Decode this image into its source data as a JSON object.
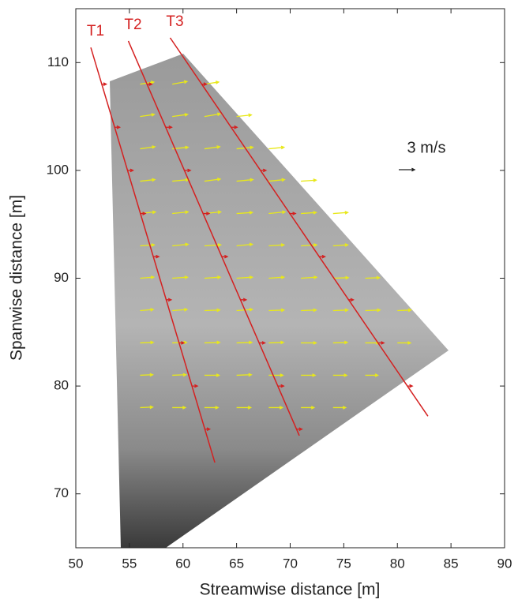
{
  "chart_data": {
    "type": "quiver",
    "xlabel": "Streamwise distance [m]",
    "ylabel": "Spanwise distance [m]",
    "xlim": [
      50,
      90
    ],
    "ylim": [
      65,
      115
    ],
    "xticks": [
      50,
      55,
      60,
      65,
      70,
      75,
      80,
      85,
      90
    ],
    "yticks": [
      70,
      80,
      90,
      100,
      110
    ],
    "reference": {
      "value": 3,
      "label": "3 m/s"
    },
    "vector_color": "#e8e81a",
    "vectors": [
      {
        "y": 108,
        "x": [
          56,
          59,
          62
        ],
        "u": [
          2.6,
          2.8,
          2.7
        ],
        "v": [
          0.4,
          0.5,
          0.4
        ]
      },
      {
        "y": 105,
        "x": [
          56,
          59,
          62,
          65
        ],
        "u": [
          2.7,
          2.9,
          3.0,
          2.8
        ],
        "v": [
          0.4,
          0.4,
          0.5,
          0.3
        ]
      },
      {
        "y": 102,
        "x": [
          56,
          59,
          62,
          65,
          68
        ],
        "u": [
          2.8,
          3.0,
          2.9,
          3.1,
          2.9
        ],
        "v": [
          0.4,
          0.3,
          0.4,
          0.3,
          0.3
        ]
      },
      {
        "y": 99,
        "x": [
          56,
          59,
          62,
          65,
          68,
          71
        ],
        "u": [
          2.8,
          3.1,
          3.0,
          3.1,
          3.0,
          2.9
        ],
        "v": [
          0.3,
          0.3,
          0.4,
          0.3,
          0.3,
          0.2
        ]
      },
      {
        "y": 96,
        "x": [
          56,
          59,
          62,
          65,
          68,
          71,
          74
        ],
        "u": [
          2.9,
          3.0,
          3.1,
          3.0,
          3.1,
          2.9,
          2.8
        ],
        "v": [
          0.3,
          0.3,
          0.3,
          0.2,
          0.3,
          0.2,
          0.2
        ]
      },
      {
        "y": 93,
        "x": [
          56,
          59,
          62,
          65,
          68,
          71,
          74
        ],
        "u": [
          2.7,
          3.0,
          3.1,
          3.0,
          2.9,
          3.0,
          2.8
        ],
        "v": [
          0.2,
          0.3,
          0.2,
          0.3,
          0.2,
          0.2,
          0.2
        ]
      },
      {
        "y": 90,
        "x": [
          56,
          59,
          62,
          65,
          68,
          71,
          74,
          77
        ],
        "u": [
          2.6,
          2.9,
          3.0,
          3.0,
          2.9,
          3.0,
          2.9,
          2.7
        ],
        "v": [
          0.2,
          0.2,
          0.2,
          0.2,
          0.2,
          0.2,
          0.1,
          0.1
        ]
      },
      {
        "y": 87,
        "x": [
          56,
          59,
          62,
          65,
          68,
          71,
          74,
          77,
          80
        ],
        "u": [
          2.5,
          2.8,
          2.9,
          3.0,
          2.9,
          2.9,
          2.8,
          2.8,
          2.6
        ],
        "v": [
          0.2,
          0.2,
          0.1,
          0.2,
          0.1,
          0.1,
          0.1,
          0.1,
          0.1
        ]
      },
      {
        "y": 84,
        "x": [
          56,
          59,
          62,
          65,
          68,
          71,
          74,
          77,
          80
        ],
        "u": [
          2.5,
          2.7,
          2.9,
          2.9,
          2.8,
          2.9,
          2.7,
          2.6,
          2.5
        ],
        "v": [
          0.1,
          0.1,
          0.1,
          0.1,
          0.1,
          0.0,
          0.1,
          0.0,
          0.0
        ]
      },
      {
        "y": 81,
        "x": [
          56,
          59,
          62,
          65,
          68,
          71,
          74,
          77
        ],
        "u": [
          2.4,
          2.6,
          2.8,
          2.8,
          2.7,
          2.7,
          2.6,
          2.4
        ],
        "v": [
          0.1,
          0.1,
          0.0,
          0.1,
          0.0,
          0.0,
          0.0,
          0.0
        ]
      },
      {
        "y": 78,
        "x": [
          56,
          59,
          62,
          65,
          68,
          71,
          74
        ],
        "u": [
          2.4,
          2.5,
          2.6,
          2.7,
          2.6,
          2.5,
          2.4
        ],
        "v": [
          0.1,
          0.0,
          0.0,
          0.0,
          0.0,
          0.0,
          0.0
        ]
      }
    ],
    "transect_color": "#d42020",
    "transects": [
      {
        "name": "T1",
        "x": [
          51.4,
          62.97
        ],
        "y": [
          111.4,
          72.9
        ],
        "arrows": {
          "x": [
            52.4,
            53.6,
            54.8,
            56.0,
            57.2,
            58.4,
            59.6,
            60.8,
            62.0
          ],
          "y": [
            108,
            104,
            100,
            96,
            92,
            88,
            84,
            80,
            76
          ],
          "u": [
            0.9,
            1.0,
            1.1,
            1.0,
            1.1,
            1.0,
            1.0,
            1.1,
            1.0
          ],
          "v": [
            0,
            0,
            0,
            0,
            0,
            0,
            0,
            0,
            0
          ]
        }
      },
      {
        "name": "T2",
        "x": [
          54.9,
          70.85
        ],
        "y": [
          112.0,
          75.4
        ],
        "arrows": {
          "x": [
            56.6,
            58.4,
            60.1,
            61.9,
            63.6,
            65.4,
            67.1,
            68.9,
            70.6
          ],
          "y": [
            108,
            104,
            100,
            96,
            92,
            88,
            84,
            80,
            76
          ],
          "u": [
            1.0,
            1.1,
            1.2,
            1.1,
            1.1,
            1.0,
            1.1,
            1.0,
            1.0
          ],
          "v": [
            0,
            0,
            0,
            0,
            0,
            0,
            0,
            0,
            0
          ]
        }
      },
      {
        "name": "T3",
        "x": [
          58.8,
          82.85
        ],
        "y": [
          112.3,
          77.2
        ],
        "arrows": {
          "x": [
            61.7,
            64.5,
            67.2,
            69.9,
            72.7,
            75.4,
            78.2,
            80.9
          ],
          "y": [
            108,
            104,
            100,
            96,
            92,
            88,
            84,
            80
          ],
          "u": [
            1.0,
            1.1,
            1.1,
            1.2,
            1.1,
            1.0,
            1.1,
            1.0
          ],
          "v": [
            0,
            0,
            0,
            0,
            0,
            0,
            0,
            0
          ]
        }
      }
    ]
  }
}
